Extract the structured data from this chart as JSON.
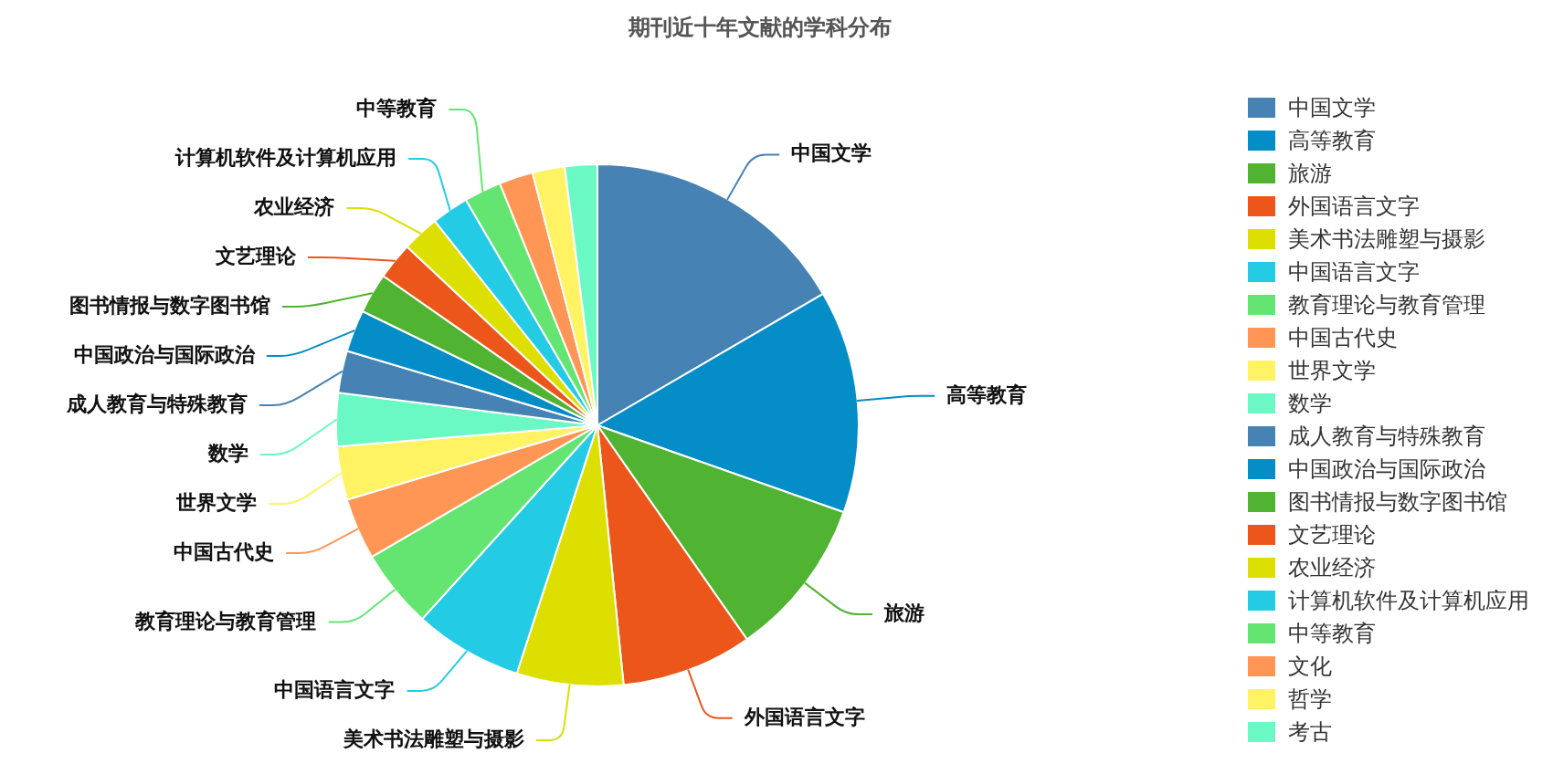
{
  "chart_data": {
    "type": "pie",
    "title": "期刊近十年文献的学科分布",
    "categories": [
      "中国文学",
      "高等教育",
      "旅游",
      "外国语言文字",
      "美术书法雕塑与摄影",
      "中国语言文字",
      "教育理论与教育管理",
      "中国古代史",
      "世界文学",
      "数学",
      "成人教育与特殊教育",
      "中国政治与国际政治",
      "图书情报与数字图书馆",
      "文艺理论",
      "农业经济",
      "计算机软件及计算机应用",
      "中等教育",
      "文化",
      "哲学",
      "考古"
    ],
    "values": [
      16.6,
      13.8,
      9.9,
      8.1,
      6.6,
      6.7,
      4.9,
      3.8,
      3.3,
      3.3,
      2.6,
      2.6,
      2.5,
      2.3,
      2.3,
      2.3,
      2.3,
      2.1,
      2.0,
      2.0
    ],
    "colors": [
      "#4682b4",
      "#058dc7",
      "#50b432",
      "#ed561b",
      "#dddf00",
      "#24cbe5",
      "#64e572",
      "#ff9655",
      "#fff263",
      "#6af9c4",
      "#4682b4",
      "#058dc7",
      "#50b432",
      "#ed561b",
      "#dddf00",
      "#24cbe5",
      "#64e572",
      "#ff9655",
      "#fff263",
      "#6af9c4"
    ],
    "legend": "right"
  }
}
